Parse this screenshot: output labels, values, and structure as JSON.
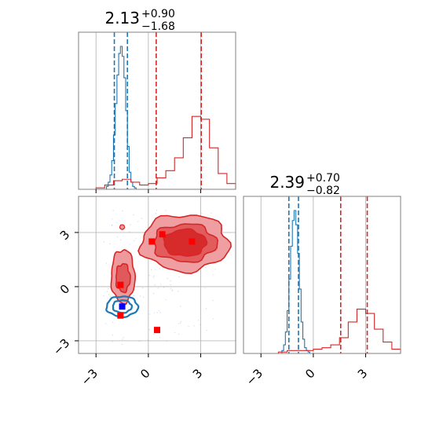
{
  "colors": {
    "blue": "#1f77b4",
    "red": "#d62728",
    "red_fill_light": "#ee9a9c",
    "red_fill_mid": "#e0595b",
    "red_fill_dark": "#d62728",
    "square_red": "#ff0000",
    "square_blue": "#0000ff",
    "grid": "#b0b0b0",
    "frame": "#808080"
  },
  "chart_data": [
    {
      "type": "histogram",
      "panel": "top-left marginal",
      "title": {
        "main": "2.13",
        "sup": "+0.90",
        "sub": "−1.68"
      },
      "xlim": [
        -4,
        5
      ],
      "series": [
        {
          "color": "blue",
          "bin_edges": [
            -2.4,
            -2.3,
            -2.2,
            -2.1,
            -2.0,
            -1.9,
            -1.8,
            -1.7,
            -1.6,
            -1.5,
            -1.4,
            -1.3,
            -1.2,
            -1.1,
            -1.0,
            -0.9,
            -0.8,
            -0.7
          ],
          "density": [
            0.02,
            0.05,
            0.1,
            0.2,
            0.38,
            0.6,
            0.8,
            0.95,
            1.0,
            0.93,
            0.78,
            0.55,
            0.3,
            0.12,
            0.05,
            0.02,
            0.01
          ],
          "quantile_lines": [
            -1.95,
            -1.2
          ]
        },
        {
          "color": "red",
          "bin_edges": [
            -3.0,
            -2.5,
            -2.0,
            -1.5,
            -1.0,
            -0.5,
            0.0,
            0.5,
            1.0,
            1.5,
            2.0,
            2.5,
            3.0,
            3.5,
            4.0,
            4.5,
            5.0
          ],
          "density": [
            0.01,
            0.03,
            0.06,
            0.07,
            0.05,
            0.03,
            0.04,
            0.08,
            0.13,
            0.22,
            0.36,
            0.51,
            0.49,
            0.29,
            0.11,
            0.04
          ],
          "quantile_lines": [
            0.45,
            3.03
          ]
        }
      ],
      "xticks": [
        -3,
        0,
        3
      ],
      "tick_labels_visible": false
    },
    {
      "type": "contour",
      "panel": "bottom-left 2D",
      "xlim": [
        -4,
        5
      ],
      "ylim": [
        -3.7,
        5
      ],
      "xticks": [
        -3,
        0,
        3
      ],
      "xtick_labels": [
        "−3",
        "0",
        "3"
      ],
      "yticks": [
        -3,
        0,
        3
      ],
      "ytick_labels": [
        "−3",
        "0",
        "3"
      ],
      "grid": true,
      "series": [
        {
          "color": "red",
          "levels": 3,
          "modes": [
            {
              "x": 2.0,
              "y": 2.6
            },
            {
              "x": -1.5,
              "y": 0.4
            }
          ]
        },
        {
          "color": "blue",
          "levels": 2,
          "modes": [
            {
              "x": -1.5,
              "y": -1.1
            }
          ]
        }
      ],
      "markers": [
        {
          "x": 0.2,
          "y": 2.5,
          "color": "square_red"
        },
        {
          "x": 0.8,
          "y": 2.9,
          "color": "square_red"
        },
        {
          "x": 2.5,
          "y": 2.5,
          "color": "square_red"
        },
        {
          "x": -1.6,
          "y": 0.1,
          "color": "square_red"
        },
        {
          "x": -1.6,
          "y": -1.6,
          "color": "square_red"
        },
        {
          "x": 0.5,
          "y": -2.4,
          "color": "square_red"
        },
        {
          "x": -1.5,
          "y": -1.1,
          "color": "square_blue"
        }
      ]
    },
    {
      "type": "histogram",
      "panel": "bottom-right marginal",
      "title": {
        "main": "2.39",
        "sup": "+0.70",
        "sub": "−0.82"
      },
      "xlim": [
        -4,
        5
      ],
      "xticks": [
        -3,
        0,
        3
      ],
      "xtick_labels": [
        "−3",
        "0",
        "3"
      ],
      "series": [
        {
          "color": "blue",
          "bin_edges": [
            -1.8,
            -1.7,
            -1.6,
            -1.5,
            -1.4,
            -1.3,
            -1.2,
            -1.1,
            -1.0,
            -0.9,
            -0.8,
            -0.7,
            -0.6,
            -0.5,
            -0.4,
            -0.3,
            -0.2
          ],
          "density": [
            0.02,
            0.06,
            0.15,
            0.3,
            0.52,
            0.75,
            0.93,
            1.0,
            0.9,
            0.7,
            0.45,
            0.22,
            0.1,
            0.04,
            0.02,
            0.01
          ],
          "quantile_lines": [
            -1.4,
            -0.85
          ]
        },
        {
          "color": "red",
          "bin_edges": [
            -3.0,
            -2.5,
            -2.0,
            -1.5,
            -1.0,
            -0.5,
            0.0,
            0.5,
            1.0,
            1.5,
            2.0,
            2.5,
            3.0,
            3.5,
            4.0,
            4.5,
            5.0
          ],
          "density": [
            0.0,
            0.0,
            0.01,
            0.02,
            0.02,
            0.02,
            0.03,
            0.04,
            0.06,
            0.11,
            0.22,
            0.31,
            0.28,
            0.17,
            0.08,
            0.03
          ],
          "quantile_lines": [
            1.57,
            3.09
          ]
        }
      ]
    }
  ]
}
